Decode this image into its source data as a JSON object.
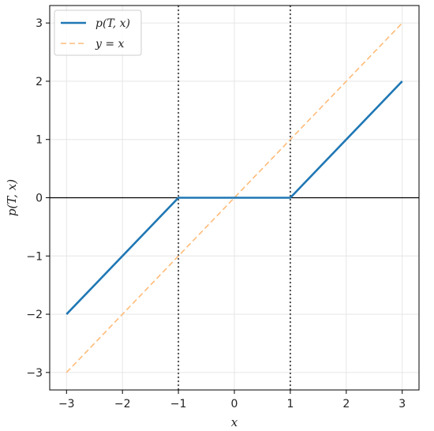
{
  "chart_data": {
    "type": "line",
    "title": "",
    "xlabel": "x",
    "ylabel": "p(T, x)",
    "xlim": [
      -3.3,
      3.3
    ],
    "ylim": [
      -3.3,
      3.3
    ],
    "xticks": [
      -3,
      -2,
      -1,
      0,
      1,
      2,
      3
    ],
    "yticks": [
      -3,
      -2,
      -1,
      0,
      1,
      2,
      3
    ],
    "xtick_labels": [
      "−3",
      "−2",
      "−1",
      "0",
      "1",
      "2",
      "3"
    ],
    "ytick_labels": [
      "−3",
      "−2",
      "−1",
      "0",
      "1",
      "2",
      "3"
    ],
    "grid": true,
    "legend_position": "top-left",
    "series": [
      {
        "name": "p(T, x)",
        "style": "solid",
        "color": "#1f77b4",
        "x": [
          -3,
          -1,
          1,
          3
        ],
        "y": [
          -2,
          0,
          0,
          2
        ]
      },
      {
        "name": "y = x",
        "style": "dashed",
        "color": "#ffbb78",
        "x": [
          -3,
          3
        ],
        "y": [
          -3,
          3
        ]
      }
    ],
    "reference_lines": [
      {
        "orientation": "horizontal",
        "value": 0,
        "style": "solid",
        "color": "#000000"
      },
      {
        "orientation": "vertical",
        "value": -1,
        "style": "dotted",
        "color": "#555555"
      },
      {
        "orientation": "vertical",
        "value": 1,
        "style": "dotted",
        "color": "#555555"
      }
    ]
  }
}
